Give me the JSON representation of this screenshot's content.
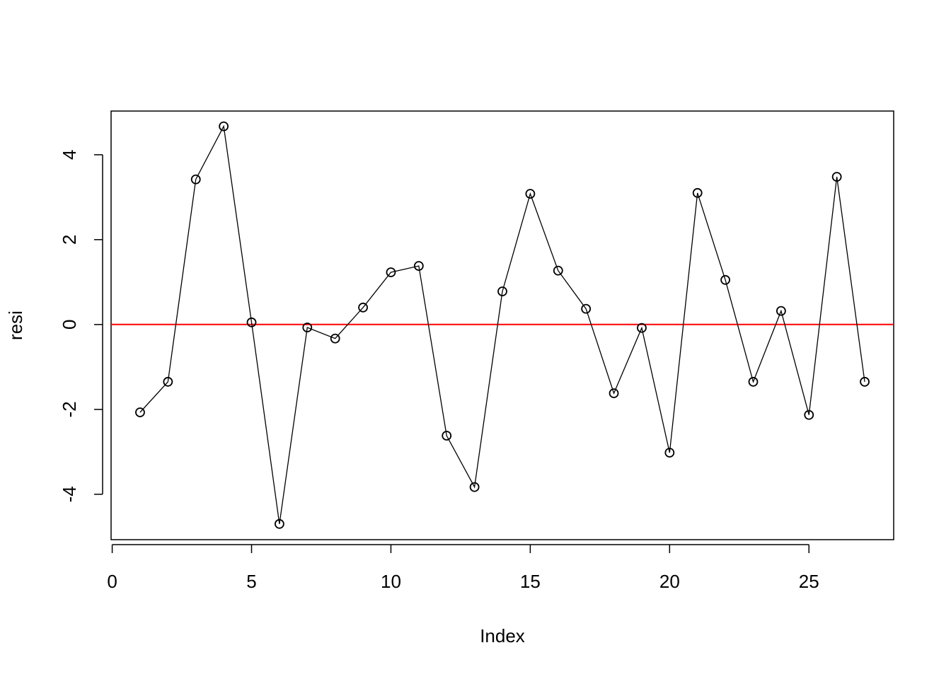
{
  "chart_data": {
    "type": "line",
    "xlabel": "Index",
    "ylabel": "resi",
    "x": [
      1,
      2,
      3,
      4,
      5,
      6,
      7,
      8,
      9,
      10,
      11,
      12,
      13,
      14,
      15,
      16,
      17,
      18,
      19,
      20,
      21,
      22,
      23,
      24,
      25,
      26,
      27
    ],
    "series": [
      {
        "color": "#000000",
        "values": [
          -2.07,
          -1.35,
          3.42,
          4.67,
          0.05,
          -4.7,
          -0.07,
          -0.33,
          0.4,
          1.23,
          1.38,
          -2.62,
          -3.83,
          0.78,
          3.08,
          1.27,
          0.37,
          -1.62,
          -0.08,
          -3.02,
          3.1,
          1.05,
          -1.35,
          0.32,
          -2.13,
          3.48,
          -1.35
        ]
      }
    ],
    "markers": "open-circle",
    "hline": {
      "value": 0,
      "color": "#ff0000"
    },
    "xlim": [
      -0.04,
      28.04
    ],
    "ylim": [
      -5.07,
      5.03
    ],
    "xticks": [
      0,
      5,
      10,
      15,
      20,
      25
    ],
    "yticks": [
      -4,
      -2,
      0,
      2,
      4
    ]
  }
}
